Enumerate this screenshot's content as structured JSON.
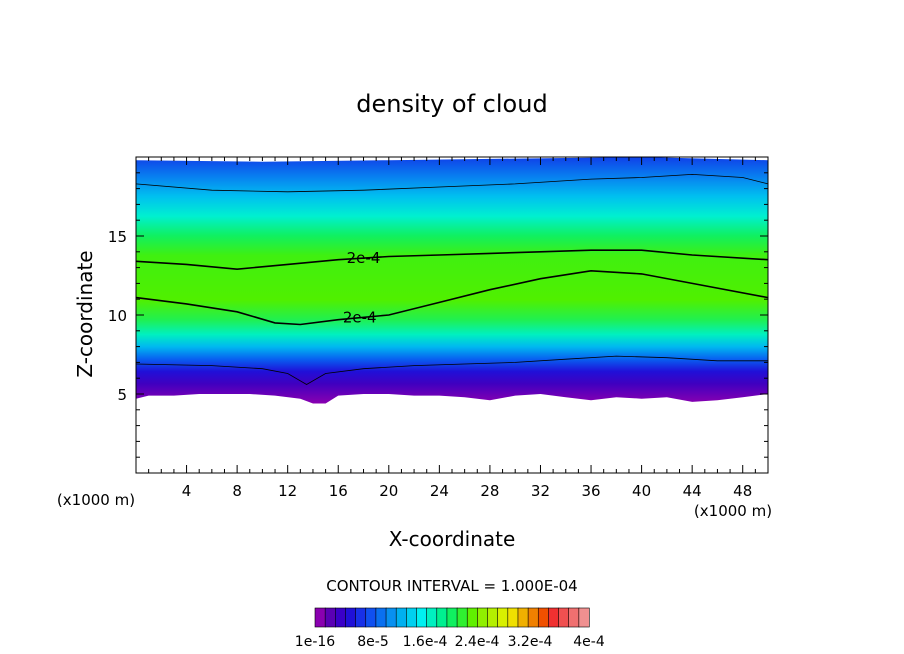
{
  "chart_data": {
    "type": "heatmap",
    "title": "density of cloud",
    "xlabel": "X-coordinate",
    "ylabel": "Z-coordinate",
    "x_unit_left": "(x1000 m)",
    "x_unit_right": "(x1000 m)",
    "xlim": [
      0,
      50
    ],
    "ylim": [
      0,
      20
    ],
    "x_ticks": [
      4,
      8,
      12,
      16,
      20,
      24,
      28,
      32,
      36,
      40,
      44,
      48
    ],
    "x_tick_labels": [
      "4",
      "8",
      "12",
      "16",
      "20",
      "24",
      "28",
      "32",
      "36",
      "40",
      "44",
      "48"
    ],
    "y_ticks": [
      5,
      10,
      15
    ],
    "y_tick_labels": [
      "5",
      "10",
      "15"
    ],
    "contour_interval_text": "CONTOUR INTERVAL = 1.000E-04",
    "contour_label_values": [
      "2e-4",
      "2e-4"
    ],
    "colorbar": {
      "colors": [
        "#8a00b0",
        "#5a00b4",
        "#3a00c8",
        "#2010d8",
        "#1830e8",
        "#1050f0",
        "#0a70f0",
        "#0890f0",
        "#00b0f0",
        "#00d0f0",
        "#00f0f0",
        "#00f0c0",
        "#00f090",
        "#10f060",
        "#30f030",
        "#60f000",
        "#90f000",
        "#b4f000",
        "#d8f000",
        "#f0e000",
        "#f0b000",
        "#f08000",
        "#f05000",
        "#f03030",
        "#f05050",
        "#f07070",
        "#f09090"
      ],
      "tick_labels": [
        "1e-16",
        "8e-5",
        "1.6e-4",
        "2.4e-4",
        "3.2e-4",
        "4e-4"
      ]
    },
    "cloud_base_km": [
      [
        0,
        4.7
      ],
      [
        1,
        4.9
      ],
      [
        3,
        4.9
      ],
      [
        5,
        5.0
      ],
      [
        7,
        5.0
      ],
      [
        9,
        5.0
      ],
      [
        11,
        4.9
      ],
      [
        13,
        4.7
      ],
      [
        14,
        4.4
      ],
      [
        15,
        4.4
      ],
      [
        16,
        4.9
      ],
      [
        18,
        5.0
      ],
      [
        20,
        5.0
      ],
      [
        22,
        4.9
      ],
      [
        24,
        4.9
      ],
      [
        26,
        4.8
      ],
      [
        28,
        4.6
      ],
      [
        30,
        4.9
      ],
      [
        32,
        5.0
      ],
      [
        34,
        4.8
      ],
      [
        36,
        4.6
      ],
      [
        38,
        4.8
      ],
      [
        40,
        4.7
      ],
      [
        42,
        4.8
      ],
      [
        44,
        4.5
      ],
      [
        46,
        4.6
      ],
      [
        48,
        4.8
      ],
      [
        50,
        5.0
      ]
    ],
    "cloud_top_km": [
      [
        0,
        19.8
      ],
      [
        10,
        19.7
      ],
      [
        20,
        19.8
      ],
      [
        30,
        19.9
      ],
      [
        40,
        20.0
      ],
      [
        50,
        19.8
      ]
    ],
    "contour_lines": [
      {
        "name": "2e-4 upper",
        "points": [
          [
            0,
            13.4
          ],
          [
            4,
            13.2
          ],
          [
            8,
            12.9
          ],
          [
            12,
            13.2
          ],
          [
            16,
            13.5
          ],
          [
            20,
            13.7
          ],
          [
            24,
            13.8
          ],
          [
            28,
            13.9
          ],
          [
            32,
            14.0
          ],
          [
            36,
            14.1
          ],
          [
            40,
            14.1
          ],
          [
            44,
            13.8
          ],
          [
            50,
            13.5
          ]
        ]
      },
      {
        "name": "2e-4 lower",
        "points": [
          [
            0,
            11.1
          ],
          [
            4,
            10.7
          ],
          [
            8,
            10.2
          ],
          [
            11,
            9.5
          ],
          [
            13,
            9.4
          ],
          [
            16,
            9.7
          ],
          [
            20,
            10.0
          ],
          [
            24,
            10.8
          ],
          [
            28,
            11.6
          ],
          [
            32,
            12.3
          ],
          [
            36,
            12.8
          ],
          [
            40,
            12.6
          ],
          [
            44,
            12.0
          ],
          [
            50,
            11.1
          ]
        ]
      },
      {
        "name": "upper outline",
        "points": [
          [
            0,
            18.3
          ],
          [
            6,
            17.9
          ],
          [
            12,
            17.8
          ],
          [
            18,
            17.9
          ],
          [
            24,
            18.1
          ],
          [
            30,
            18.3
          ],
          [
            36,
            18.6
          ],
          [
            40,
            18.7
          ],
          [
            44,
            18.9
          ],
          [
            48,
            18.7
          ],
          [
            50,
            18.3
          ]
        ]
      },
      {
        "name": "lower outline",
        "points": [
          [
            0,
            6.9
          ],
          [
            6,
            6.8
          ],
          [
            10,
            6.6
          ],
          [
            12,
            6.3
          ],
          [
            13.5,
            5.6
          ],
          [
            15,
            6.3
          ],
          [
            18,
            6.6
          ],
          [
            22,
            6.8
          ],
          [
            26,
            6.9
          ],
          [
            30,
            7.0
          ],
          [
            34,
            7.2
          ],
          [
            38,
            7.4
          ],
          [
            42,
            7.3
          ],
          [
            46,
            7.1
          ],
          [
            50,
            7.1
          ]
        ]
      }
    ]
  }
}
